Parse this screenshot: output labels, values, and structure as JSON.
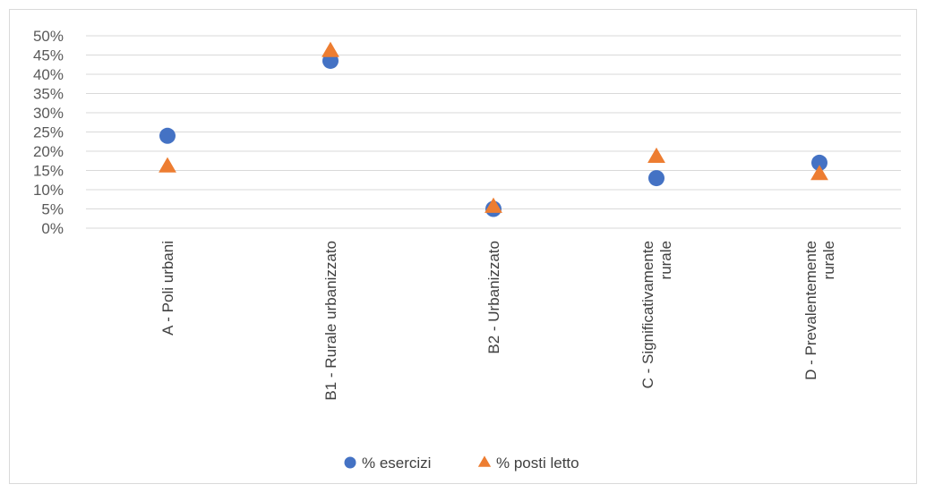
{
  "chart_data": {
    "type": "scatter",
    "categories": [
      [
        "A - Poli urbani"
      ],
      [
        "B1 - Rurale urbanizzato"
      ],
      [
        "B2 - Urbanizzato"
      ],
      [
        "C - Significativamente",
        "rurale"
      ],
      [
        "D - Prevalentemente",
        "rurale"
      ]
    ],
    "series": [
      {
        "name": "% esercizi",
        "marker": "circle",
        "color": "#4472c4",
        "values": [
          24,
          43.5,
          5,
          13,
          17
        ]
      },
      {
        "name": "% posti letto",
        "marker": "triangle",
        "color": "#ed7d31",
        "values": [
          16,
          46,
          5.5,
          18.5,
          14
        ]
      }
    ],
    "ylim": [
      0,
      50
    ],
    "yticks": [
      "0%",
      "5%",
      "10%",
      "15%",
      "20%",
      "25%",
      "30%",
      "35%",
      "40%",
      "45%",
      "50%"
    ],
    "grid": true,
    "legend": "bottom",
    "gridline_color": "#d9d9d9"
  }
}
